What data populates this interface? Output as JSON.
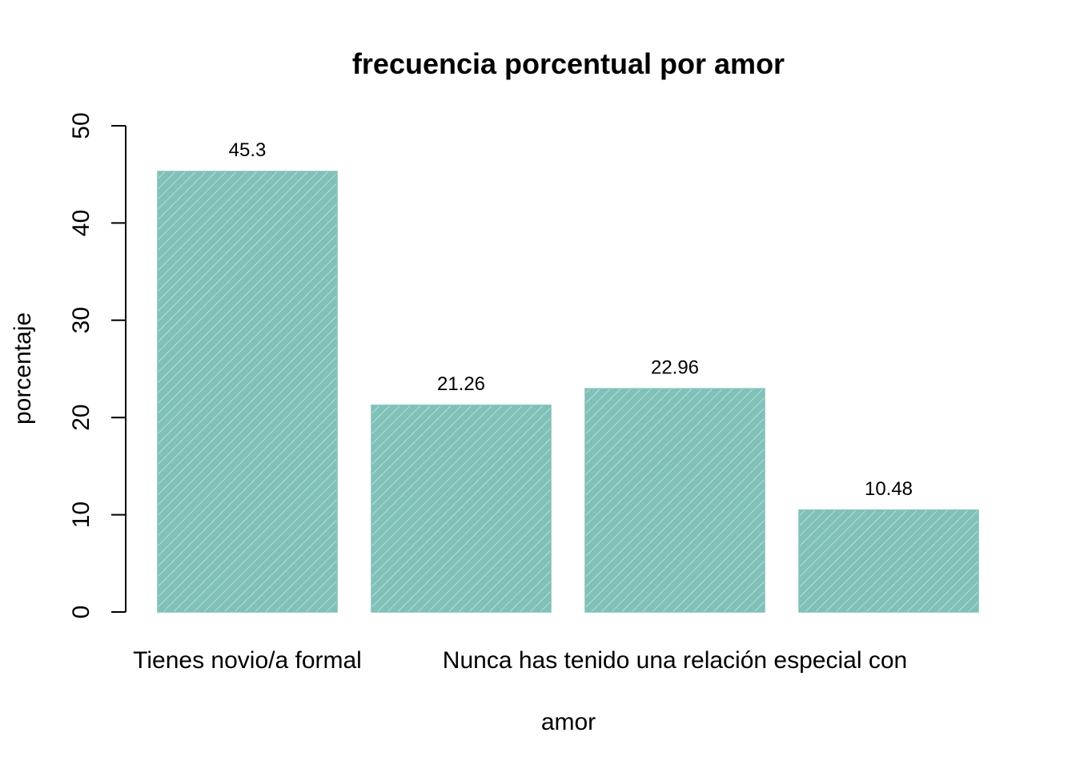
{
  "chart_data": {
    "type": "bar",
    "title": "frecuencia porcentual por amor",
    "xlabel": "amor",
    "ylabel": "porcentaje",
    "categories": [
      "Tienes novio/a formal",
      "",
      "Nunca has tenido una relación especial con",
      ""
    ],
    "values": [
      45.3,
      21.26,
      22.96,
      10.48
    ],
    "data_labels": [
      "45.3",
      "21.26",
      "22.96",
      "10.48"
    ],
    "ylim": [
      0,
      50
    ],
    "yticks": [
      0,
      10,
      20,
      30,
      40,
      50
    ],
    "ytick_labels": [
      "0",
      "10",
      "20",
      "30",
      "40",
      "50"
    ],
    "bar_color": "#80c1b8",
    "hatch_color": "#ffffff",
    "grid": false,
    "legend": "none"
  }
}
